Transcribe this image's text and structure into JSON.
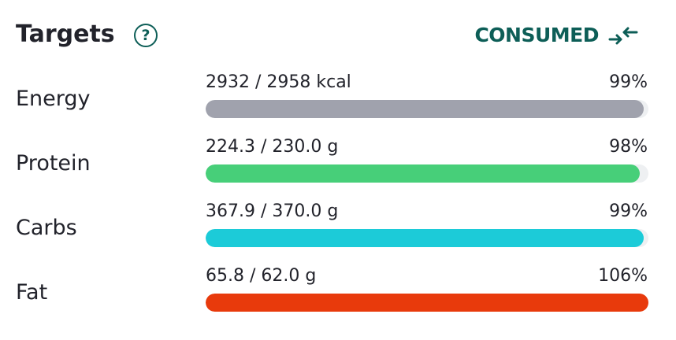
{
  "header": {
    "title": "Targets",
    "toggle": "CONSUMED"
  },
  "rows": [
    {
      "label": "Energy",
      "amount": "2932 / 2958 kcal",
      "percent": 99,
      "percent_label": "99%",
      "color": "#a0a2ad"
    },
    {
      "label": "Protein",
      "amount": "224.3 / 230.0 g",
      "percent": 98,
      "percent_label": "98%",
      "color": "#47cf79"
    },
    {
      "label": "Carbs",
      "amount": "367.9 / 370.0 g",
      "percent": 99,
      "percent_label": "99%",
      "color": "#1ccbd8"
    },
    {
      "label": "Fat",
      "amount": "65.8 / 62.0 g",
      "percent": 106,
      "percent_label": "106%",
      "color": "#e83a0c"
    }
  ]
}
